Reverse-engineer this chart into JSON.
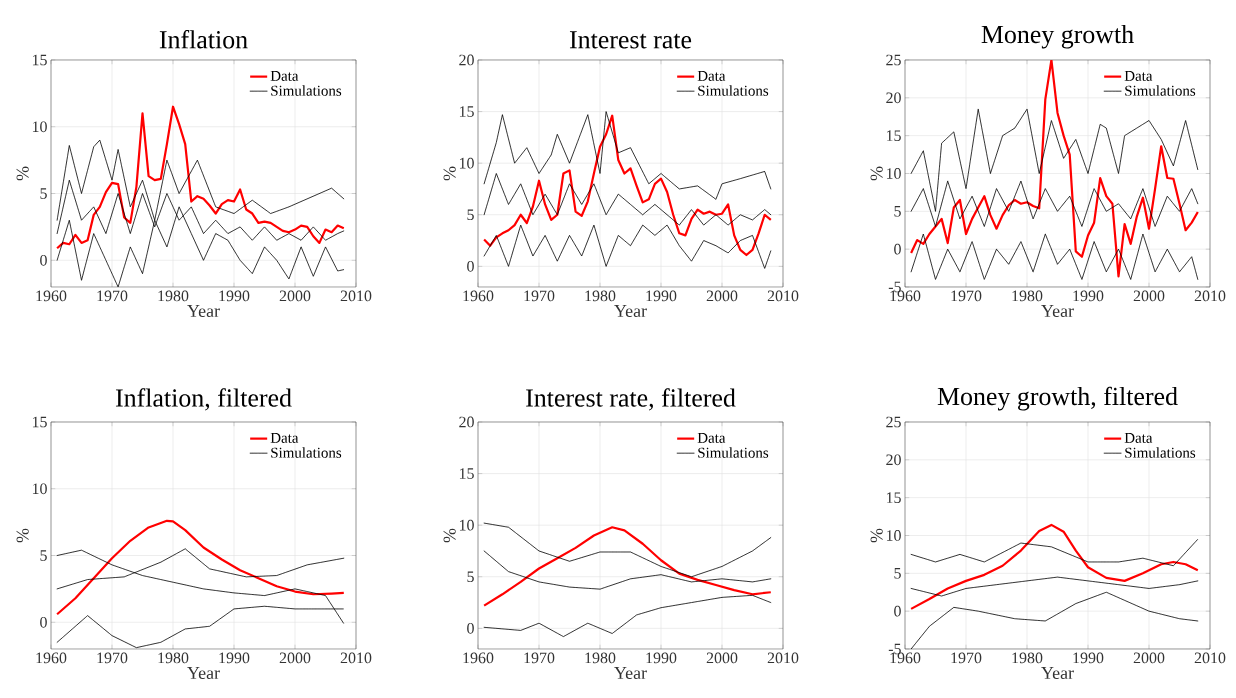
{
  "chart_data": [
    {
      "type": "line",
      "title": "Inflation",
      "xlabel": "Year",
      "ylabel": "%",
      "xlim": [
        1960,
        2010
      ],
      "xticks": [
        1960,
        1970,
        1980,
        1990,
        2000,
        2010
      ],
      "ylim": [
        -2,
        15
      ],
      "yticks": [
        0,
        5,
        10,
        15
      ],
      "grid": true,
      "legend": "top right",
      "series": [
        {
          "name": "Data",
          "color": "#ff0000",
          "line_style": "solid",
          "x": [
            1961,
            1962,
            1963,
            1964,
            1965,
            1966,
            1967,
            1968,
            1969,
            1970,
            1971,
            1972,
            1973,
            1974,
            1975,
            1976,
            1977,
            1978,
            1979,
            1980,
            1981,
            1982,
            1983,
            1984,
            1985,
            1986,
            1987,
            1988,
            1989,
            1990,
            1991,
            1992,
            1993,
            1994,
            1995,
            1996,
            1997,
            1998,
            1999,
            2000,
            2001,
            2002,
            2003,
            2004,
            2005,
            2006,
            2007,
            2008
          ],
          "values": [
            0.9,
            1.3,
            1.2,
            1.9,
            1.3,
            1.5,
            3.4,
            4.0,
            5.1,
            5.8,
            5.7,
            3.2,
            2.8,
            5.5,
            11.0,
            6.3,
            6.0,
            6.1,
            8.7,
            11.5,
            10.2,
            8.7,
            4.4,
            4.8,
            4.6,
            4.1,
            3.5,
            4.2,
            4.5,
            4.4,
            5.3,
            3.8,
            3.5,
            2.8,
            2.9,
            2.8,
            2.5,
            2.2,
            2.1,
            2.3,
            2.6,
            2.5,
            1.8,
            1.3,
            2.3,
            2.1,
            2.6,
            2.4
          ]
        },
        {
          "name": "Simulations",
          "color": "#000000",
          "line_style": "dashdot",
          "x": [
            1961,
            1963,
            1965,
            1967,
            1968,
            1970,
            1971,
            1973,
            1975,
            1977,
            1979,
            1981,
            1984,
            1987,
            1990,
            1993,
            1996,
            1999,
            2003,
            2006,
            2008
          ],
          "values": [
            3,
            8.6,
            5,
            8.5,
            9,
            6,
            8.3,
            4,
            6,
            3,
            7.5,
            5,
            7.5,
            4,
            3.5,
            4.5,
            3.5,
            4,
            4.8,
            5.4,
            4.6
          ]
        },
        {
          "color": "#000000",
          "line_style": "dashdot",
          "x": [
            1961,
            1963,
            1965,
            1967,
            1969,
            1971,
            1973,
            1975,
            1977,
            1979,
            1981,
            1983,
            1985,
            1987,
            1989,
            1991,
            1993,
            1995,
            1997,
            1999,
            2001,
            2003,
            2005,
            2007,
            2008
          ],
          "values": [
            0,
            3,
            -1.5,
            2,
            0,
            -2,
            1,
            -1,
            3,
            1,
            4,
            2,
            0,
            2,
            1.5,
            0,
            -1,
            1,
            0,
            -1.4,
            1,
            -1.2,
            1,
            -0.8,
            -0.7
          ]
        },
        {
          "color": "#000000",
          "line_style": "dashdot",
          "x": [
            1961,
            1963,
            1965,
            1967,
            1969,
            1971,
            1973,
            1975,
            1977,
            1979,
            1981,
            1983,
            1985,
            1987,
            1989,
            1991,
            1993,
            1995,
            1997,
            1999,
            2001,
            2003,
            2005,
            2007,
            2008
          ],
          "values": [
            2,
            6,
            3,
            4,
            2,
            5,
            2,
            5,
            2.5,
            5,
            3,
            4,
            2,
            3,
            2,
            2.5,
            1.5,
            2.5,
            1.5,
            2,
            1.5,
            2.5,
            1.5,
            2,
            2.2
          ]
        }
      ]
    },
    {
      "type": "line",
      "title": "Interest rate",
      "xlabel": "Year",
      "ylabel": "%",
      "xlim": [
        1960,
        2010
      ],
      "xticks": [
        1960,
        1970,
        1980,
        1990,
        2000,
        2010
      ],
      "ylim": [
        -2,
        20
      ],
      "yticks": [
        0,
        5,
        10,
        15,
        20
      ],
      "grid": true,
      "legend": "top right",
      "series": [
        {
          "name": "Data",
          "color": "#ff0000",
          "line_style": "solid",
          "x": [
            1961,
            1962,
            1963,
            1964,
            1965,
            1966,
            1967,
            1968,
            1969,
            1970,
            1971,
            1972,
            1973,
            1974,
            1975,
            1976,
            1977,
            1978,
            1979,
            1980,
            1981,
            1982,
            1983,
            1984,
            1985,
            1986,
            1987,
            1988,
            1989,
            1990,
            1991,
            1992,
            1993,
            1994,
            1995,
            1996,
            1997,
            1998,
            1999,
            2000,
            2001,
            2002,
            2003,
            2004,
            2005,
            2006,
            2007,
            2008
          ],
          "values": [
            2.6,
            2.0,
            2.8,
            3.2,
            3.5,
            4.0,
            5.0,
            4.2,
            5.8,
            8.3,
            6.0,
            4.5,
            5.0,
            9.0,
            9.3,
            5.3,
            4.9,
            6.3,
            9.0,
            11.6,
            12.8,
            14.6,
            10.3,
            9.0,
            9.5,
            7.8,
            6.2,
            6.5,
            8.0,
            8.5,
            7.2,
            5.0,
            3.2,
            3.0,
            4.6,
            5.5,
            5.1,
            5.3,
            5.0,
            5.1,
            6.0,
            3.0,
            1.6,
            1.1,
            1.6,
            3.2,
            5.0,
            4.5
          ]
        },
        {
          "name": "Simulations",
          "color": "#000000",
          "line_style": "dashdot",
          "x": [
            1961,
            1963,
            1964,
            1966,
            1968,
            1970,
            1972,
            1973,
            1975,
            1978,
            1980,
            1981,
            1983,
            1985,
            1988,
            1990,
            1993,
            1996,
            1999,
            2000,
            2003,
            2007,
            2008
          ],
          "values": [
            8,
            12,
            14.7,
            10,
            11.5,
            9,
            10.8,
            12.8,
            10,
            14.7,
            9,
            15,
            11,
            11.5,
            8,
            9,
            7.5,
            7.8,
            6.5,
            8,
            8.5,
            9.2,
            7.5
          ]
        },
        {
          "color": "#000000",
          "line_style": "dashdot",
          "x": [
            1961,
            1963,
            1965,
            1967,
            1969,
            1971,
            1973,
            1975,
            1977,
            1979,
            1981,
            1983,
            1985,
            1987,
            1989,
            1991,
            1993,
            1995,
            1997,
            1999,
            2001,
            2003,
            2005,
            2007,
            2008
          ],
          "values": [
            1,
            3,
            0,
            4,
            1,
            3,
            0.5,
            3,
            1,
            4,
            0,
            3,
            2,
            4,
            3,
            4,
            2,
            0.5,
            2.5,
            2,
            1.3,
            2.5,
            3,
            -0.2,
            1.5
          ]
        },
        {
          "color": "#000000",
          "line_style": "dashdot",
          "x": [
            1961,
            1963,
            1965,
            1967,
            1969,
            1971,
            1973,
            1975,
            1977,
            1979,
            1981,
            1983,
            1985,
            1987,
            1989,
            1991,
            1993,
            1995,
            1997,
            1999,
            2001,
            2003,
            2005,
            2007,
            2008
          ],
          "values": [
            5,
            9,
            6,
            8,
            5,
            7,
            5,
            8,
            6,
            8,
            5,
            7,
            6,
            5,
            6,
            5,
            4,
            5.5,
            4,
            5,
            4,
            5,
            4.5,
            5.5,
            5
          ]
        }
      ]
    },
    {
      "type": "line",
      "title": "Money growth",
      "xlabel": "Year",
      "ylabel": "%",
      "xlim": [
        1960,
        2010
      ],
      "xticks": [
        1960,
        1970,
        1980,
        1990,
        2000,
        2010
      ],
      "ylim": [
        -5,
        25
      ],
      "yticks": [
        -5,
        0,
        5,
        10,
        15,
        20,
        25
      ],
      "grid": true,
      "legend": "top right",
      "series": [
        {
          "name": "Data",
          "color": "#ff0000",
          "line_style": "solid",
          "x": [
            1961,
            1962,
            1963,
            1964,
            1965,
            1966,
            1967,
            1968,
            1969,
            1970,
            1971,
            1972,
            1973,
            1974,
            1975,
            1976,
            1977,
            1978,
            1979,
            1980,
            1981,
            1982,
            1983,
            1984,
            1985,
            1986,
            1987,
            1988,
            1989,
            1990,
            1991,
            1992,
            1993,
            1994,
            1995,
            1996,
            1997,
            1998,
            1999,
            2000,
            2001,
            2002,
            2003,
            2004,
            2005,
            2006,
            2007,
            2008
          ],
          "values": [
            -0.5,
            1.2,
            0.7,
            2.0,
            3.0,
            4.0,
            0.8,
            5.5,
            6.5,
            2.0,
            4.0,
            5.5,
            7.0,
            4.5,
            2.7,
            4.5,
            5.8,
            6.5,
            6.0,
            6.2,
            5.7,
            5.4,
            19.8,
            25.0,
            18.0,
            15.0,
            12.5,
            -0.3,
            -1.0,
            1.8,
            3.5,
            9.4,
            7.0,
            6.0,
            -3.6,
            3.3,
            0.7,
            4.3,
            6.8,
            2.7,
            8.0,
            13.6,
            9.4,
            9.3,
            6.0,
            2.5,
            3.5,
            4.9
          ]
        },
        {
          "name": "Simulations",
          "color": "#000000",
          "line_style": "dashdot",
          "x": [
            1961,
            1963,
            1965,
            1966,
            1968,
            1970,
            1972,
            1974,
            1976,
            1978,
            1980,
            1982,
            1984,
            1986,
            1988,
            1990,
            1992,
            1993,
            1995,
            1996,
            1998,
            2000,
            2002,
            2004,
            2006,
            2008
          ],
          "values": [
            10,
            13,
            5,
            14,
            15.5,
            8,
            18.5,
            10,
            15,
            16,
            18.5,
            10,
            17,
            12,
            14.5,
            10,
            16.5,
            16,
            10,
            15,
            16,
            17,
            14.5,
            11,
            17,
            10.5
          ]
        },
        {
          "color": "#000000",
          "line_style": "dashdot",
          "x": [
            1961,
            1963,
            1965,
            1967,
            1969,
            1971,
            1973,
            1975,
            1977,
            1979,
            1981,
            1983,
            1985,
            1987,
            1989,
            1991,
            1993,
            1995,
            1997,
            1999,
            2001,
            2003,
            2005,
            2007,
            2008
          ],
          "values": [
            -3,
            2,
            -4,
            0,
            -3,
            1,
            -4,
            0,
            -2,
            1,
            -3,
            2,
            -2,
            0,
            -4,
            1,
            -3,
            0,
            -4,
            2,
            -3,
            0,
            -3,
            -1,
            -4
          ]
        },
        {
          "color": "#000000",
          "line_style": "dashdot",
          "x": [
            1961,
            1963,
            1965,
            1967,
            1969,
            1971,
            1973,
            1975,
            1977,
            1979,
            1981,
            1983,
            1985,
            1987,
            1989,
            1991,
            1993,
            1995,
            1997,
            1999,
            2001,
            2003,
            2005,
            2007,
            2008
          ],
          "values": [
            5,
            8,
            3,
            9,
            4,
            7,
            3,
            8,
            5,
            9,
            4,
            8,
            5,
            7,
            3,
            8,
            5,
            6,
            4,
            8,
            3,
            7,
            5,
            8,
            6
          ]
        }
      ]
    },
    {
      "type": "line",
      "title": "Inflation, filtered",
      "xlabel": "Year",
      "ylabel": "%",
      "xlim": [
        1960,
        2010
      ],
      "xticks": [
        1960,
        1970,
        1980,
        1990,
        2000,
        2010
      ],
      "ylim": [
        -2,
        15
      ],
      "yticks": [
        0,
        5,
        10,
        15
      ],
      "grid": true,
      "legend": "top right",
      "series": [
        {
          "name": "Data",
          "color": "#ff0000",
          "line_style": "solid",
          "x": [
            1961,
            1964,
            1967,
            1970,
            1973,
            1976,
            1979,
            1980,
            1982,
            1985,
            1988,
            1991,
            1994,
            1997,
            2000,
            2003,
            2006,
            2008
          ],
          "values": [
            0.6,
            1.8,
            3.3,
            4.8,
            6.1,
            7.1,
            7.6,
            7.55,
            6.9,
            5.6,
            4.7,
            3.9,
            3.3,
            2.7,
            2.3,
            2.1,
            2.15,
            2.2
          ]
        },
        {
          "name": "Simulations",
          "color": "#000000",
          "line_style": "dashdot",
          "x": [
            1961,
            1966,
            1972,
            1978,
            1982,
            1986,
            1992,
            1997,
            2002,
            2008
          ],
          "values": [
            2.5,
            3.2,
            3.4,
            4.5,
            5.5,
            4.0,
            3.4,
            3.5,
            4.3,
            4.8
          ]
        },
        {
          "color": "#000000",
          "line_style": "dashdot",
          "x": [
            1961,
            1966,
            1970,
            1974,
            1978,
            1982,
            1986,
            1990,
            1995,
            2000,
            2008
          ],
          "values": [
            -1.5,
            0.5,
            -1.0,
            -1.9,
            -1.5,
            -0.5,
            -0.3,
            1.0,
            1.2,
            1.0,
            1.0
          ]
        },
        {
          "color": "#000000",
          "line_style": "dashdot",
          "x": [
            1961,
            1965,
            1970,
            1975,
            1980,
            1985,
            1990,
            1995,
            2000,
            2005,
            2008
          ],
          "values": [
            5.0,
            5.4,
            4.3,
            3.5,
            3.0,
            2.5,
            2.2,
            2.0,
            2.5,
            2.0,
            -0.1
          ]
        }
      ]
    },
    {
      "type": "line",
      "title": "Interest rate, filtered",
      "xlabel": "Year",
      "ylabel": "%",
      "xlim": [
        1960,
        2010
      ],
      "xticks": [
        1960,
        1970,
        1980,
        1990,
        2000,
        2010
      ],
      "ylim": [
        -2,
        20
      ],
      "yticks": [
        0,
        5,
        10,
        15,
        20
      ],
      "grid": true,
      "legend": "top right",
      "series": [
        {
          "name": "Data",
          "color": "#ff0000",
          "line_style": "solid",
          "x": [
            1961,
            1964,
            1967,
            1970,
            1973,
            1976,
            1979,
            1982,
            1984,
            1987,
            1990,
            1993,
            1996,
            1999,
            2002,
            2005,
            2008
          ],
          "values": [
            2.2,
            3.3,
            4.5,
            5.8,
            6.8,
            7.8,
            9.0,
            9.8,
            9.5,
            8.2,
            6.6,
            5.3,
            4.7,
            4.2,
            3.7,
            3.3,
            3.5
          ]
        },
        {
          "name": "Simulations",
          "color": "#000000",
          "line_style": "dashdot",
          "x": [
            1961,
            1965,
            1970,
            1975,
            1980,
            1985,
            1990,
            1995,
            2000,
            2005,
            2008
          ],
          "values": [
            10.2,
            9.8,
            7.5,
            6.5,
            7.4,
            7.4,
            6.0,
            5.0,
            6.0,
            7.5,
            8.8
          ]
        },
        {
          "color": "#000000",
          "line_style": "dashdot",
          "x": [
            1961,
            1967,
            1970,
            1974,
            1978,
            1982,
            1986,
            1990,
            1995,
            2000,
            2005,
            2008
          ],
          "values": [
            0.1,
            -0.2,
            0.5,
            -0.8,
            0.5,
            -0.5,
            1.3,
            2.0,
            2.5,
            3.0,
            3.2,
            2.5
          ]
        },
        {
          "color": "#000000",
          "line_style": "dashdot",
          "x": [
            1961,
            1965,
            1970,
            1975,
            1980,
            1985,
            1990,
            1995,
            2000,
            2005,
            2008
          ],
          "values": [
            7.5,
            5.5,
            4.5,
            4.0,
            3.8,
            4.8,
            5.2,
            4.5,
            4.8,
            4.5,
            4.8
          ]
        }
      ]
    },
    {
      "type": "line",
      "title": "Money growth, filtered",
      "xlabel": "Year",
      "ylabel": "%",
      "xlim": [
        1960,
        2010
      ],
      "xticks": [
        1960,
        1970,
        1980,
        1990,
        2000,
        2010
      ],
      "ylim": [
        -5,
        25
      ],
      "yticks": [
        -5,
        0,
        5,
        10,
        15,
        20,
        25
      ],
      "grid": true,
      "legend": "top right",
      "series": [
        {
          "name": "Data",
          "color": "#ff0000",
          "line_style": "solid",
          "x": [
            1961,
            1964,
            1967,
            1970,
            1973,
            1976,
            1979,
            1982,
            1984,
            1986,
            1988,
            1990,
            1993,
            1996,
            1999,
            2002,
            2004,
            2006,
            2008
          ],
          "values": [
            0.3,
            1.6,
            3.0,
            4.0,
            4.8,
            6.0,
            8.0,
            10.6,
            11.4,
            10.5,
            8.0,
            5.8,
            4.4,
            4.0,
            5.0,
            6.2,
            6.5,
            6.2,
            5.4
          ]
        },
        {
          "name": "Simulations",
          "color": "#000000",
          "line_style": "dashdot",
          "x": [
            1961,
            1964,
            1968,
            1972,
            1978,
            1983,
            1988,
            1993,
            2000,
            2005,
            2008
          ],
          "values": [
            -5,
            -2,
            0.5,
            0,
            -1,
            -1.3,
            1,
            2.5,
            0,
            -1,
            -1.3
          ]
        },
        {
          "color": "#000000",
          "line_style": "dashdot",
          "x": [
            1961,
            1965,
            1969,
            1973,
            1979,
            1984,
            1990,
            1995,
            1999,
            2004,
            2008
          ],
          "values": [
            7.5,
            6.5,
            7.5,
            6.5,
            9.0,
            8.5,
            6.5,
            6.5,
            7.0,
            6.0,
            9.5
          ]
        },
        {
          "color": "#000000",
          "line_style": "dashdot",
          "x": [
            1961,
            1966,
            1970,
            1975,
            1980,
            1985,
            1990,
            1995,
            2000,
            2005,
            2008
          ],
          "values": [
            3,
            2,
            3,
            3.5,
            4,
            4.5,
            4,
            3.5,
            3,
            3.5,
            4
          ]
        }
      ]
    }
  ]
}
